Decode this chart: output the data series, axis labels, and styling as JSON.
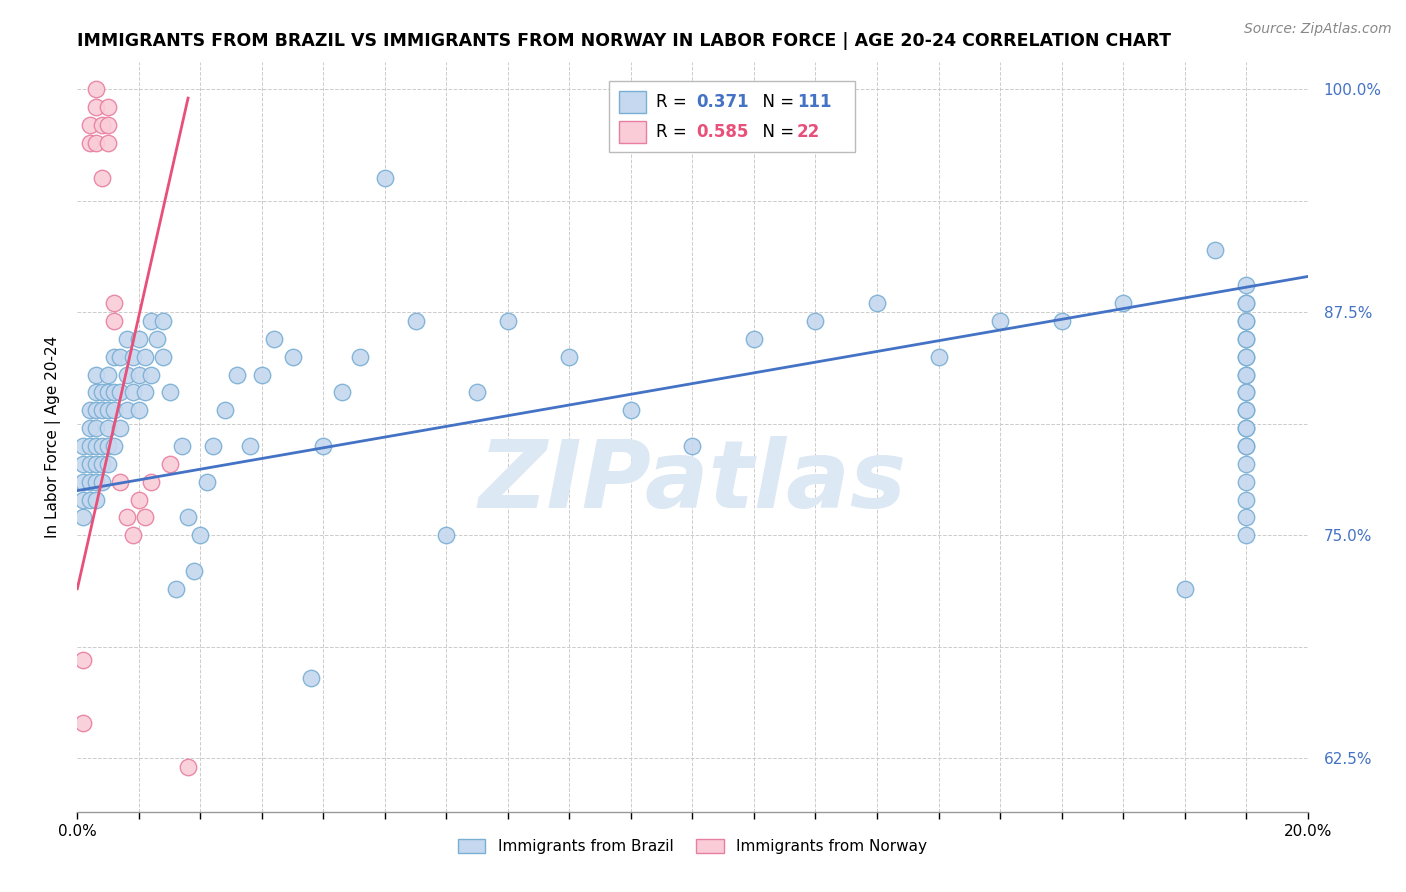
{
  "title": "IMMIGRANTS FROM BRAZIL VS IMMIGRANTS FROM NORWAY IN LABOR FORCE | AGE 20-24 CORRELATION CHART",
  "source": "Source: ZipAtlas.com",
  "xlabel_brazil": "Immigrants from Brazil",
  "xlabel_norway": "Immigrants from Norway",
  "ylabel": "In Labor Force | Age 20-24",
  "xlim": [
    0.0,
    0.2
  ],
  "ylim": [
    0.595,
    1.015
  ],
  "brazil_R": 0.371,
  "brazil_N": 111,
  "norway_R": 0.585,
  "norway_N": 22,
  "brazil_color": "#c5d8ef",
  "brazil_edge": "#7aafd4",
  "norway_color": "#f9ccd8",
  "norway_edge": "#e87fa0",
  "brazil_line_color": "#4472c4",
  "norway_line_color": "#e8507a",
  "watermark_text": "ZIPatlas",
  "watermark_color": "#dce8f4",
  "background_color": "#ffffff",
  "grid_color": "#cccccc",
  "title_fontsize": 12.5,
  "source_fontsize": 10,
  "legend_fontsize": 12,
  "brazil_x": [
    0.001,
    0.001,
    0.001,
    0.001,
    0.001,
    0.002,
    0.002,
    0.002,
    0.002,
    0.002,
    0.002,
    0.003,
    0.003,
    0.003,
    0.003,
    0.003,
    0.003,
    0.003,
    0.003,
    0.004,
    0.004,
    0.004,
    0.004,
    0.004,
    0.005,
    0.005,
    0.005,
    0.005,
    0.005,
    0.005,
    0.006,
    0.006,
    0.006,
    0.006,
    0.007,
    0.007,
    0.007,
    0.008,
    0.008,
    0.008,
    0.009,
    0.009,
    0.01,
    0.01,
    0.01,
    0.011,
    0.011,
    0.012,
    0.012,
    0.013,
    0.014,
    0.014,
    0.015,
    0.016,
    0.017,
    0.018,
    0.019,
    0.02,
    0.021,
    0.022,
    0.024,
    0.026,
    0.028,
    0.03,
    0.032,
    0.035,
    0.038,
    0.04,
    0.043,
    0.046,
    0.05,
    0.055,
    0.06,
    0.065,
    0.07,
    0.08,
    0.09,
    0.1,
    0.11,
    0.12,
    0.13,
    0.14,
    0.15,
    0.16,
    0.17,
    0.18,
    0.185,
    0.19,
    0.19,
    0.19,
    0.19,
    0.19,
    0.19,
    0.19,
    0.19,
    0.19,
    0.19,
    0.19,
    0.19,
    0.19,
    0.19,
    0.19,
    0.19,
    0.19,
    0.19,
    0.19,
    0.19,
    0.19,
    0.19,
    0.19,
    0.19
  ],
  "brazil_y": [
    0.8,
    0.79,
    0.78,
    0.77,
    0.76,
    0.82,
    0.81,
    0.8,
    0.79,
    0.78,
    0.77,
    0.84,
    0.83,
    0.82,
    0.81,
    0.8,
    0.79,
    0.78,
    0.77,
    0.83,
    0.82,
    0.8,
    0.79,
    0.78,
    0.84,
    0.83,
    0.82,
    0.81,
    0.8,
    0.79,
    0.85,
    0.83,
    0.82,
    0.8,
    0.85,
    0.83,
    0.81,
    0.86,
    0.84,
    0.82,
    0.85,
    0.83,
    0.86,
    0.84,
    0.82,
    0.85,
    0.83,
    0.87,
    0.84,
    0.86,
    0.87,
    0.85,
    0.83,
    0.72,
    0.8,
    0.76,
    0.73,
    0.75,
    0.78,
    0.8,
    0.82,
    0.84,
    0.8,
    0.84,
    0.86,
    0.85,
    0.67,
    0.8,
    0.83,
    0.85,
    0.95,
    0.87,
    0.75,
    0.83,
    0.87,
    0.85,
    0.82,
    0.8,
    0.86,
    0.87,
    0.88,
    0.85,
    0.87,
    0.87,
    0.88,
    0.72,
    0.91,
    0.8,
    0.81,
    0.82,
    0.83,
    0.84,
    0.85,
    0.86,
    0.87,
    0.88,
    0.75,
    0.76,
    0.77,
    0.78,
    0.79,
    0.8,
    0.81,
    0.82,
    0.83,
    0.84,
    0.85,
    0.86,
    0.87,
    0.88,
    0.89
  ],
  "norway_x": [
    0.001,
    0.001,
    0.002,
    0.002,
    0.003,
    0.003,
    0.003,
    0.004,
    0.004,
    0.005,
    0.005,
    0.005,
    0.006,
    0.006,
    0.007,
    0.008,
    0.009,
    0.01,
    0.011,
    0.012,
    0.015,
    0.018
  ],
  "norway_y": [
    0.645,
    0.68,
    0.98,
    0.97,
    0.99,
    1.0,
    0.97,
    0.95,
    0.98,
    0.99,
    0.98,
    0.97,
    0.88,
    0.87,
    0.78,
    0.76,
    0.75,
    0.77,
    0.76,
    0.78,
    0.79,
    0.62
  ],
  "brazil_trend_x0": 0.0,
  "brazil_trend_x1": 0.2,
  "brazil_trend_y0": 0.775,
  "brazil_trend_y1": 0.895,
  "norway_trend_x0": 0.0,
  "norway_trend_x1": 0.018,
  "norway_trend_y0": 0.72,
  "norway_trend_y1": 0.995
}
